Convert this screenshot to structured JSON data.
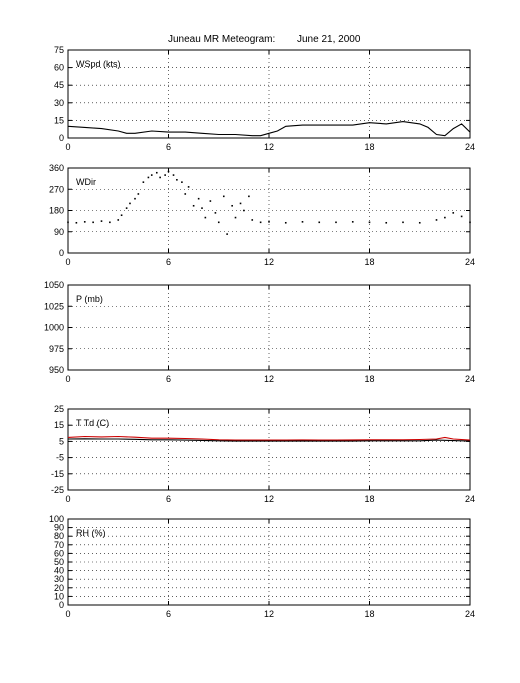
{
  "title": "Juneau MR Meteogram:",
  "date": "June 21, 2000",
  "colors": {
    "obs": "#000000",
    "temperature": "#cc0000"
  },
  "chart_data": [
    {
      "type": "line",
      "label": "WSpd (kts)",
      "xlim": [
        0,
        24
      ],
      "xticks": [
        0,
        6,
        12,
        18,
        24
      ],
      "ylim": [
        0,
        75
      ],
      "yticks": [
        0,
        15,
        30,
        45,
        60,
        75
      ],
      "grid": true,
      "series": [
        {
          "color": "#000000",
          "x": [
            0,
            1,
            2,
            3,
            3.5,
            4,
            5,
            6,
            7,
            8,
            9,
            10,
            11,
            11.5,
            12,
            12.5,
            13,
            14,
            15,
            16,
            17,
            18,
            19,
            20,
            21,
            21.5,
            22,
            22.5,
            23,
            23.5,
            24
          ],
          "y": [
            10,
            9,
            8,
            6,
            4,
            4,
            6,
            5,
            5,
            4,
            3,
            3,
            2,
            2,
            4,
            6,
            10,
            11,
            11,
            11,
            11,
            13,
            12,
            14,
            12,
            9,
            3,
            2,
            8,
            12,
            5
          ]
        }
      ]
    },
    {
      "type": "scatter",
      "label": "WDir",
      "xlim": [
        0,
        24
      ],
      "xticks": [
        0,
        6,
        12,
        18,
        24
      ],
      "ylim": [
        0,
        360
      ],
      "yticks": [
        0,
        90,
        180,
        270,
        360
      ],
      "grid": true,
      "series": [
        {
          "color": "#000000",
          "x": [
            0,
            0.5,
            1,
            1.5,
            2,
            2.5,
            3,
            3.2,
            3.5,
            3.7,
            4,
            4.2,
            4.5,
            4.8,
            5,
            5.3,
            5.5,
            5.8,
            6,
            6.3,
            6.5,
            6.8,
            7,
            7.2,
            7.5,
            7.8,
            8,
            8.2,
            8.5,
            8.8,
            9,
            9.3,
            9.5,
            9.8,
            10,
            10.3,
            10.5,
            10.8,
            11,
            11.5,
            12,
            13,
            14,
            15,
            16,
            17,
            18,
            19,
            20,
            21,
            22,
            22.5,
            23,
            23.5,
            24
          ],
          "y": [
            130,
            128,
            132,
            130,
            135,
            130,
            140,
            160,
            190,
            210,
            230,
            250,
            300,
            320,
            330,
            340,
            320,
            330,
            345,
            330,
            310,
            300,
            250,
            280,
            200,
            230,
            190,
            150,
            220,
            170,
            130,
            240,
            80,
            200,
            150,
            210,
            180,
            240,
            140,
            130,
            132,
            128,
            132,
            130,
            130,
            132,
            130,
            128,
            130,
            128,
            140,
            150,
            170,
            155,
            130
          ]
        }
      ]
    },
    {
      "type": "line",
      "label": "P (mb)",
      "xlim": [
        0,
        24
      ],
      "xticks": [
        0,
        6,
        12,
        18,
        24
      ],
      "ylim": [
        950,
        1050
      ],
      "yticks": [
        950,
        975,
        1000,
        1025,
        1050
      ],
      "grid": true,
      "series": []
    },
    {
      "type": "line",
      "label": "T Td (C)",
      "xlim": [
        0,
        24
      ],
      "xticks": [
        0,
        6,
        12,
        18,
        24
      ],
      "ylim": [
        -25,
        25
      ],
      "yticks": [
        -25,
        -15,
        -5,
        5,
        15,
        25
      ],
      "grid": true,
      "series": [
        {
          "color": "#cc0000",
          "x": [
            0,
            1,
            2,
            3,
            4,
            5,
            6,
            7,
            8,
            9,
            10,
            11,
            12,
            13,
            14,
            15,
            16,
            17,
            18,
            19,
            20,
            21,
            22,
            22.5,
            23,
            24
          ],
          "y": [
            7.5,
            8.0,
            7.8,
            8.0,
            7.6,
            7.0,
            7.0,
            6.8,
            6.5,
            6.0,
            5.8,
            5.8,
            5.8,
            5.8,
            5.9,
            5.8,
            5.8,
            5.9,
            6.0,
            6.0,
            6.0,
            6.2,
            6.5,
            7.5,
            6.5,
            5.8
          ]
        },
        {
          "color": "#000000",
          "x": [
            0,
            1,
            2,
            3,
            4,
            5,
            6,
            7,
            8,
            9,
            10,
            11,
            12,
            13,
            14,
            15,
            16,
            17,
            18,
            19,
            20,
            21,
            22,
            23,
            24
          ],
          "y": [
            6.5,
            6.6,
            6.5,
            6.5,
            6.3,
            6.0,
            6.0,
            5.8,
            5.6,
            5.4,
            5.2,
            5.2,
            5.2,
            5.2,
            5.3,
            5.2,
            5.2,
            5.2,
            5.4,
            5.4,
            5.4,
            5.4,
            5.8,
            5.5,
            5.2
          ]
        }
      ]
    },
    {
      "type": "line",
      "label": "RH (%)",
      "xlim": [
        0,
        24
      ],
      "xticks": [
        0,
        6,
        12,
        18,
        24
      ],
      "ylim": [
        0,
        100
      ],
      "yticks": [
        0,
        10,
        20,
        30,
        40,
        50,
        60,
        70,
        80,
        90,
        100
      ],
      "grid": true,
      "series": []
    }
  ]
}
